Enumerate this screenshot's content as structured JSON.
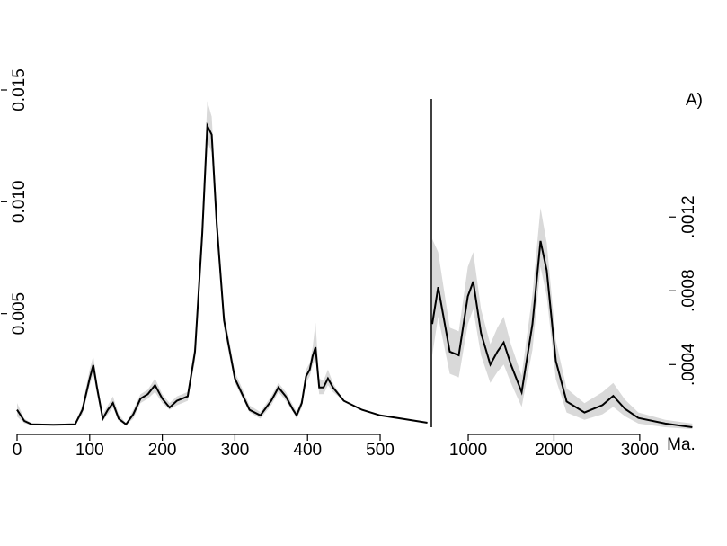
{
  "chart_data": [
    {
      "type": "line",
      "band_color": "#d9d9d9",
      "color": "#000000",
      "xlim": [
        0,
        570
      ],
      "ylim": [
        0,
        0.015
      ],
      "xticks": [
        0,
        100,
        200,
        300,
        400,
        500
      ],
      "yticks": [
        0.005,
        {
          "value": 0.01,
          "label": "0.010"
        },
        0.015
      ],
      "x": [
        0,
        10,
        20,
        50,
        80,
        90,
        100,
        105,
        110,
        118,
        125,
        132,
        140,
        150,
        160,
        170,
        180,
        190,
        200,
        210,
        220,
        235,
        245,
        255,
        262,
        268,
        275,
        285,
        300,
        320,
        335,
        350,
        360,
        370,
        380,
        385,
        392,
        398,
        403,
        407,
        411,
        416,
        422,
        428,
        435,
        450,
        475,
        500,
        530,
        565
      ],
      "values": [
        0.0007,
        0.0002,
        5e-05,
        3e-05,
        5e-05,
        0.0007,
        0.0021,
        0.0027,
        0.0017,
        0.0003,
        0.0007,
        0.001,
        0.0003,
        5e-05,
        0.0005,
        0.0012,
        0.0014,
        0.0018,
        0.0012,
        0.0008,
        0.0011,
        0.0013,
        0.0033,
        0.0086,
        0.0134,
        0.013,
        0.009,
        0.0047,
        0.0021,
        0.0007,
        0.00045,
        0.0011,
        0.0017,
        0.0013,
        0.0007,
        0.00045,
        0.001,
        0.0022,
        0.0025,
        0.0031,
        0.0035,
        0.0017,
        0.0017,
        0.0021,
        0.0017,
        0.0011,
        0.0007,
        0.00045,
        0.0003,
        0.00012
      ],
      "band_lower": [
        0.0004,
        0.0001,
        2e-05,
        1e-05,
        2e-05,
        0.0005,
        0.0018,
        0.0023,
        0.0014,
        0.0002,
        0.0005,
        0.0008,
        0.0002,
        2e-05,
        0.0003,
        0.001,
        0.0012,
        0.0015,
        0.001,
        0.0007,
        0.0009,
        0.0011,
        0.0029,
        0.008,
        0.0127,
        0.0122,
        0.0084,
        0.0043,
        0.0019,
        0.0006,
        0.0003,
        0.0009,
        0.0015,
        0.0011,
        0.0006,
        0.0003,
        0.0008,
        0.0019,
        0.0022,
        0.0027,
        0.003,
        0.0014,
        0.0014,
        0.0018,
        0.0015,
        0.0011,
        0.0007,
        0.00045,
        0.0003,
        0.00012
      ],
      "band_upper": [
        0.001,
        0.0003,
        0.0001,
        6e-05,
        0.0001,
        0.0009,
        0.0025,
        0.0031,
        0.002,
        0.0005,
        0.0009,
        0.0013,
        0.0005,
        0.0001,
        0.0007,
        0.0014,
        0.0016,
        0.0021,
        0.0014,
        0.001,
        0.0013,
        0.0015,
        0.0037,
        0.0093,
        0.0145,
        0.0138,
        0.0096,
        0.0051,
        0.0024,
        0.0009,
        0.0006,
        0.0013,
        0.0019,
        0.0015,
        0.0009,
        0.0006,
        0.0012,
        0.0025,
        0.0028,
        0.0035,
        0.0046,
        0.0021,
        0.002,
        0.0025,
        0.0019,
        0.0011,
        0.0007,
        0.00045,
        0.0003,
        0.00012
      ]
    },
    {
      "type": "line",
      "band_color": "#d9d9d9",
      "color": "#000000",
      "annotation": "A)",
      "xlabel": "Ma.",
      "xlim": [
        570,
        3630
      ],
      "ylim": [
        6e-05,
        0.00184
      ],
      "xticks": [
        1000,
        2000,
        3000
      ],
      "yticks": [
        {
          "value": 0.0004,
          "label": ".0004"
        },
        {
          "value": 0.0008,
          "label": ".0008"
        },
        {
          "value": 0.0012,
          "label": ".0012"
        }
      ],
      "x": [
        580,
        650,
        785,
        890,
        995,
        1058,
        1150,
        1257,
        1340,
        1414,
        1497,
        1623,
        1749,
        1843,
        1916,
        2021,
        2147,
        2356,
        2565,
        2691,
        2827,
        2984,
        3298,
        3613
      ],
      "values": [
        0.00062,
        0.00082,
        0.00047,
        0.00045,
        0.00077,
        0.00085,
        0.00057,
        0.0004,
        0.00047,
        0.00052,
        0.0004,
        0.00025,
        0.00062,
        0.00107,
        0.00091,
        0.00042,
        0.0002,
        0.00014,
        0.00018,
        0.00023,
        0.00016,
        0.00011,
        8e-05,
        6e-05
      ],
      "band_lower": [
        0.00045,
        0.00066,
        0.00035,
        0.00033,
        0.00062,
        0.0007,
        0.00045,
        0.0003,
        0.00036,
        0.0004,
        0.0003,
        0.00017,
        0.00048,
        0.00093,
        0.00077,
        0.00032,
        0.00014,
        0.0001,
        0.00013,
        0.00017,
        0.00012,
        8e-05,
        6e-05,
        5e-05
      ],
      "band_upper": [
        0.00108,
        0.00101,
        0.0006,
        0.00058,
        0.00093,
        0.00101,
        0.0007,
        0.00051,
        0.0006,
        0.00066,
        0.00051,
        0.00034,
        0.00078,
        0.00125,
        0.00106,
        0.00053,
        0.00027,
        0.00019,
        0.00025,
        0.0003,
        0.00021,
        0.00014,
        0.0001,
        8e-05
      ]
    }
  ]
}
